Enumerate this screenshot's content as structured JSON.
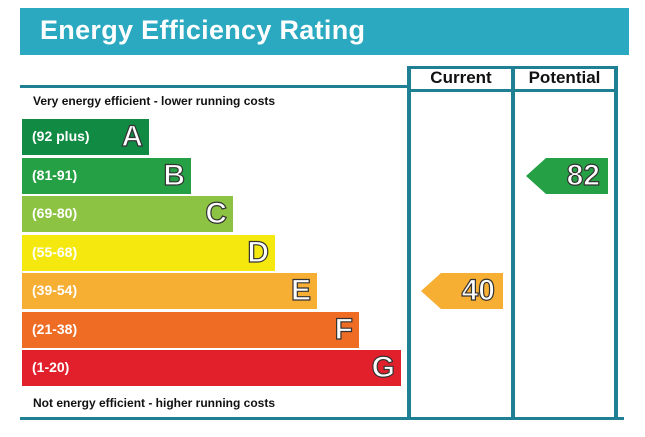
{
  "header": {
    "title": "Energy Efficiency Rating"
  },
  "columns": {
    "current": "Current",
    "potential": "Potential"
  },
  "captions": {
    "top": "Very energy efficient - lower running costs",
    "bottom": "Not energy efficient - higher running costs"
  },
  "chart_data": {
    "type": "bar",
    "categories": [
      "A",
      "B",
      "C",
      "D",
      "E",
      "F",
      "G"
    ],
    "bands": [
      {
        "letter": "A",
        "range": "(92 plus)",
        "color": "#118a44"
      },
      {
        "letter": "B",
        "range": "(81-91)",
        "color": "#26a045"
      },
      {
        "letter": "C",
        "range": "(69-80)",
        "color": "#8cc342"
      },
      {
        "letter": "D",
        "range": "(55-68)",
        "color": "#f4e80f"
      },
      {
        "letter": "E",
        "range": "(39-54)",
        "color": "#f6ae33"
      },
      {
        "letter": "F",
        "range": "(21-38)",
        "color": "#ee6c24"
      },
      {
        "letter": "G",
        "range": "(1-20)",
        "color": "#e2202b"
      }
    ],
    "current": {
      "value": "40",
      "band": "E",
      "color": "#f6ae33"
    },
    "potential": {
      "value": "82",
      "band": "B",
      "color": "#26a045"
    }
  }
}
